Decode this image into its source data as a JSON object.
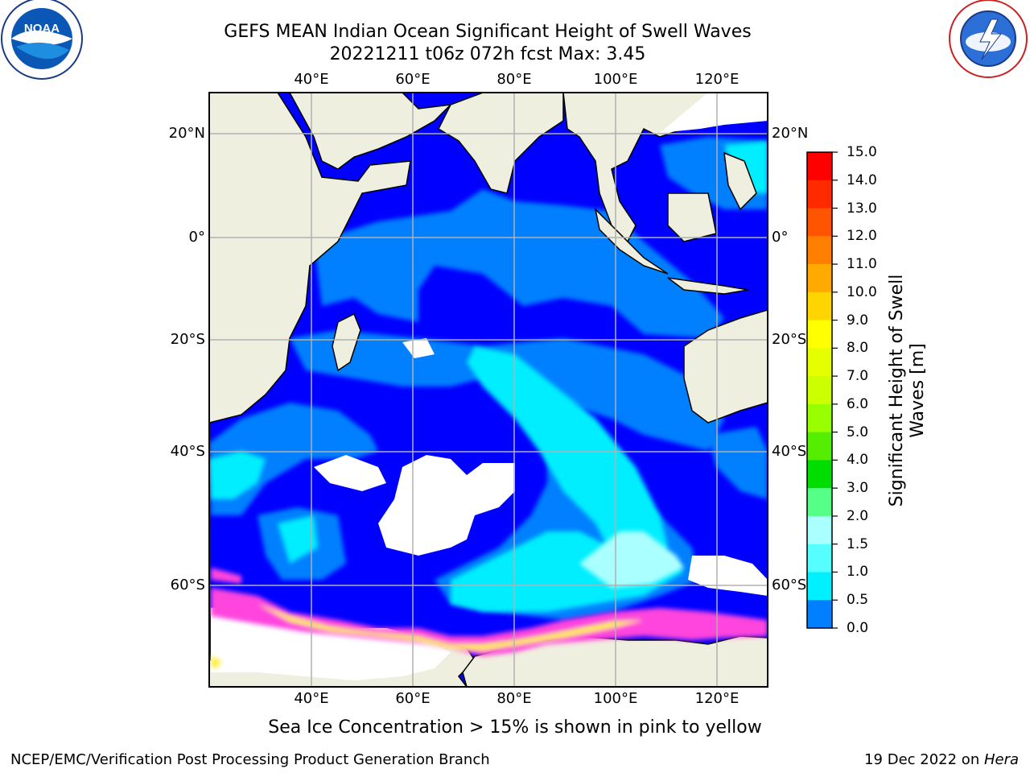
{
  "title_line1": "GEFS MEAN Indian Ocean Significant Height of Swell Waves",
  "title_line2": "20221211 t06z 072h fcst   Max: 3.45",
  "caption": "Sea Ice Concentration > 15% is shown in pink to yellow",
  "footer_left": "NCEP/EMC/Verification Post Processing Product Generation Branch",
  "footer_date": "19 Dec 2022 on ",
  "footer_host": "Hera",
  "logo_left": "noaa-logo",
  "logo_right": "nws-logo",
  "logo_left_text": "NOAA",
  "lon_labels": [
    "40°E",
    "60°E",
    "80°E",
    "100°E",
    "120°E"
  ],
  "lat_labels": [
    "20°N",
    "0°",
    "20°S",
    "40°S",
    "60°S"
  ],
  "colorbar": {
    "title_line1": "Significant Height of Swell",
    "title_line2": "Waves [m]",
    "ticks": [
      "15.0",
      "14.0",
      "13.0",
      "12.0",
      "11.0",
      "10.0",
      "9.0",
      "8.0",
      "7.0",
      "6.0",
      "5.0",
      "4.0",
      "3.0",
      "2.0",
      "1.5",
      "1.0",
      "0.5",
      "0.0"
    ],
    "colors": [
      "#ff0000",
      "#ff2a00",
      "#ff5500",
      "#ff8000",
      "#ffaa00",
      "#ffd500",
      "#ffff00",
      "#e6ff00",
      "#ccff00",
      "#99ff00",
      "#55ee00",
      "#00dd00",
      "#55ff88",
      "#aaffff",
      "#55ffff",
      "#00f0ff",
      "#0080ff",
      "#0000ff"
    ]
  },
  "colors": {
    "land": "#efefdf",
    "deep_swell": "#0000ff",
    "mid_swell": "#0080ff",
    "high_swell": "#00eeff",
    "grid": "#b0b0b0",
    "sea_ice_pink": "#ff44dd",
    "sea_ice_yellow": "#ffee44"
  }
}
